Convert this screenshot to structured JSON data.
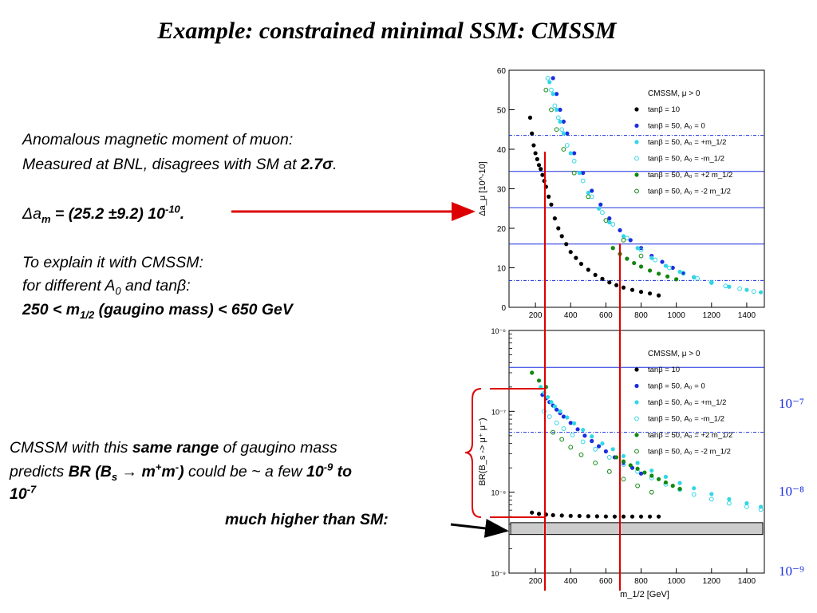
{
  "title": "Example:   constrained minimal SSM: CMSSM",
  "text": {
    "l1": "Anomalous magnetic moment of muon:",
    "l2a": "Measured at BNL, disagrees with SM at ",
    "l2b": "2.7σ",
    "l2c": ".",
    "l3a": "Δa",
    "l3b": "m",
    "l3c": " = (25.2 ±9.2) 10",
    "l3d": "-10",
    "l3e": ".",
    "l4": "To explain it with CMSSM:",
    "l5a": " for different A",
    "l5b": "0",
    "l5c": " and tanβ:",
    "l6a": "250 < m",
    "l6b": "1/2",
    "l6c": " (gaugino mass) < 650 GeV",
    "p1a": "CMSSM with  this ",
    "p1b": "same range",
    "p1c": " of gaugino mass",
    "p2a": "predicts ",
    "p2b": "BR (B",
    "p2c": "s",
    "p2d": " → m",
    "p2e": "+",
    "p2f": "m",
    "p2g": "-",
    "p2h": ")",
    "p2i": " could be ~ a few  ",
    "p2j": "10",
    "p2k": "-9",
    "p2l": " to",
    "p3a": "10",
    "p3b": "-7",
    "p4": "much higher  than SM:",
    "r1": "10⁻⁷",
    "r2": "10⁻⁸",
    "r3": "10⁻⁹"
  },
  "colors": {
    "tan10": "#000000",
    "tan50_0": "#1a2ee0",
    "tan50_plus": "#33d6e6",
    "tan50_minus": "#33d6e6",
    "tan50_plus2": "#118811",
    "tan50_minus2": "#118811",
    "hline": "#1a2ee0",
    "redline": "#dd0000",
    "sm_band": "#cccccc"
  },
  "chart_data": [
    {
      "type": "scatter",
      "ylabel": "Δa_μ [10^-10]",
      "xlim": [
        50,
        1500
      ],
      "ylim": [
        0,
        60
      ],
      "xticks": [
        200,
        400,
        600,
        800,
        1000,
        1200,
        1400
      ],
      "yticks": [
        0,
        10,
        20,
        30,
        40,
        50,
        60
      ],
      "legend_title": "CMSSM, μ > 0",
      "legend_position": "top-right",
      "hlines": [
        {
          "y": 43.5,
          "style": "dash-dot"
        },
        {
          "y": 34.4,
          "style": "solid"
        },
        {
          "y": 25.2,
          "style": "solid"
        },
        {
          "y": 16.0,
          "style": "solid"
        },
        {
          "y": 6.8,
          "style": "dash-dot"
        }
      ],
      "series": [
        {
          "name": "tanβ = 10",
          "marker": "filled",
          "color_key": "tan10",
          "x": [
            170,
            180,
            190,
            200,
            210,
            220,
            230,
            240,
            250,
            260,
            275,
            290,
            310,
            330,
            350,
            375,
            400,
            430,
            460,
            500,
            540,
            580,
            620,
            660,
            700,
            750,
            800,
            850,
            900
          ],
          "y": [
            48,
            44,
            41,
            39,
            37.5,
            36,
            35,
            33.5,
            32,
            30.5,
            28,
            26,
            22.5,
            20,
            18,
            16,
            14,
            12.5,
            11,
            9.5,
            8.2,
            7.2,
            6.3,
            5.6,
            5,
            4.4,
            3.9,
            3.5,
            3
          ]
        },
        {
          "name": "tanβ = 50, A₀ = 0",
          "marker": "filled",
          "color_key": "tan50_0",
          "x": [
            300,
            320,
            340,
            360,
            380,
            420,
            470,
            520,
            570,
            620,
            680,
            740,
            800,
            860,
            920,
            980,
            1040,
            1100
          ],
          "y": [
            58,
            54,
            50,
            47,
            44,
            39,
            34,
            29.5,
            26,
            22.5,
            19.5,
            17,
            15,
            13,
            11.5,
            10,
            8.7,
            7.6
          ]
        },
        {
          "name": "tanβ = 50, A₀ = +m_1/2",
          "marker": "filled",
          "color_key": "tan50_plus",
          "x": [
            280,
            300,
            320,
            340,
            360,
            400,
            450,
            500,
            560,
            620,
            700,
            780,
            860,
            940,
            1020,
            1100,
            1200,
            1300,
            1400,
            1480
          ],
          "y": [
            57,
            54,
            50,
            47,
            44,
            39,
            34,
            29,
            25,
            21.5,
            18,
            15,
            12.5,
            10.5,
            9,
            7.6,
            6.2,
            5.2,
            4.4,
            3.8
          ]
        },
        {
          "name": "tanβ = 50, A₀ = -m_1/2",
          "marker": "open",
          "color_key": "tan50_minus",
          "x": [
            270,
            290,
            310,
            330,
            350,
            380,
            420,
            470,
            520,
            580,
            640,
            720,
            800,
            880,
            960,
            1040,
            1120,
            1200,
            1280,
            1360,
            1440
          ],
          "y": [
            58,
            55,
            51,
            48,
            45,
            41,
            37,
            32,
            28,
            24,
            21,
            17.5,
            14.5,
            12,
            10,
            8.6,
            7.3,
            6.3,
            5.4,
            4.7,
            4
          ]
        },
        {
          "name": "tanβ = 50, A₀ = +2 m_1/2",
          "marker": "filled",
          "color_key": "tan50_plus2",
          "x": [
            640,
            680,
            720,
            760,
            800,
            850,
            900,
            950,
            1000
          ],
          "y": [
            15,
            13.5,
            12.3,
            11.2,
            10.3,
            9.3,
            8.5,
            7.8,
            7.1
          ]
        },
        {
          "name": "tanβ = 50, A₀ = -2 m_1/2",
          "marker": "open",
          "color_key": "tan50_minus2",
          "x": [
            260,
            290,
            320,
            360,
            420,
            500,
            600,
            700,
            800
          ],
          "y": [
            55,
            50,
            45,
            40,
            34,
            28,
            22,
            17,
            13
          ]
        }
      ]
    },
    {
      "type": "scatter",
      "xlabel": "m_1/2 [GeV]",
      "ylabel": "BR(B_s -> μ⁺ μ⁻)",
      "xlim": [
        50,
        1500
      ],
      "ylim": [
        1e-09,
        1e-06
      ],
      "yscale": "log",
      "xticks": [
        200,
        400,
        600,
        800,
        1000,
        1200,
        1400
      ],
      "ytick_labels": [
        "10⁻⁹",
        "10⁻⁸",
        "10⁻⁷",
        "10⁻⁶"
      ],
      "legend_title": "CMSSM, μ > 0",
      "legend_position": "top-right",
      "sm_band": [
        3e-09,
        4.2e-09
      ],
      "hlines": [
        {
          "y": 3.5e-07,
          "style": "solid"
        },
        {
          "y": 5.5e-08,
          "style": "dash-dot"
        }
      ],
      "series": [
        {
          "name": "tanβ = 10",
          "marker": "filled",
          "color_key": "tan10",
          "x": [
            180,
            220,
            260,
            300,
            350,
            400,
            450,
            500,
            550,
            600,
            650,
            700,
            750,
            800,
            850,
            900
          ],
          "y": [
            5.6e-09,
            5.4e-09,
            5.3e-09,
            5.2e-09,
            5.15e-09,
            5.1e-09,
            5.08e-09,
            5.05e-09,
            5.03e-09,
            5.01e-09,
            5e-09,
            5e-09,
            5e-09,
            5e-09,
            5e-09,
            5e-09
          ]
        },
        {
          "name": "tanβ = 50, A₀ = 0",
          "marker": "filled",
          "color_key": "tan50_0",
          "x": [
            240,
            260,
            280,
            300,
            320,
            340,
            360,
            400,
            440,
            480,
            520,
            560,
            600,
            650,
            700,
            750,
            800
          ],
          "y": [
            1.6e-07,
            1.45e-07,
            1.3e-07,
            1.18e-07,
            1.05e-07,
            9.5e-08,
            8.6e-08,
            7.2e-08,
            6e-08,
            5e-08,
            4.3e-08,
            3.7e-08,
            3.2e-08,
            2.7e-08,
            2.3e-08,
            2e-08,
            1.7e-08
          ]
        },
        {
          "name": "tanβ = 50, A₀ = +m_1/2",
          "marker": "filled",
          "color_key": "tan50_plus",
          "x": [
            230,
            250,
            270,
            290,
            310,
            340,
            380,
            420,
            470,
            520,
            580,
            640,
            700,
            780,
            860,
            940,
            1020,
            1100,
            1200,
            1300,
            1400,
            1480
          ],
          "y": [
            2e-07,
            1.7e-07,
            1.5e-07,
            1.3e-07,
            1.15e-07,
            1e-07,
            8.4e-08,
            7.1e-08,
            5.9e-08,
            4.9e-08,
            4e-08,
            3.4e-08,
            2.8e-08,
            2.3e-08,
            1.85e-08,
            1.55e-08,
            1.3e-08,
            1.12e-08,
            9.5e-09,
            8.2e-09,
            7.3e-09,
            6.6e-09
          ]
        },
        {
          "name": "tanβ = 50, A₀ = -m_1/2",
          "marker": "open",
          "color_key": "tan50_minus",
          "x": [
            250,
            280,
            320,
            360,
            410,
            470,
            540,
            620,
            700,
            780,
            860,
            940,
            1020,
            1100,
            1200,
            1300,
            1400,
            1480
          ],
          "y": [
            1e-07,
            8.6e-08,
            7.2e-08,
            6.1e-08,
            5.1e-08,
            4.2e-08,
            3.4e-08,
            2.7e-08,
            2.2e-08,
            1.8e-08,
            1.5e-08,
            1.25e-08,
            1.08e-08,
            9.4e-09,
            8.2e-09,
            7.3e-09,
            6.6e-09,
            6.1e-09
          ]
        },
        {
          "name": "tanβ = 50, A₀ = +2 m_1/2",
          "marker": "filled",
          "color_key": "tan50_plus2",
          "x": [
            180,
            220,
            260,
            660,
            700,
            740,
            780,
            820,
            860,
            900,
            940,
            980,
            1020
          ],
          "y": [
            3e-07,
            2.4e-07,
            2e-07,
            2.7e-08,
            2.4e-08,
            2.15e-08,
            1.95e-08,
            1.75e-08,
            1.6e-08,
            1.45e-08,
            1.32e-08,
            1.2e-08,
            1.1e-08
          ]
        },
        {
          "name": "tanβ = 50, A₀ = -2 m_1/2",
          "marker": "open",
          "color_key": "tan50_minus2",
          "x": [
            300,
            350,
            400,
            460,
            540,
            620,
            700,
            780,
            860
          ],
          "y": [
            5.5e-08,
            4.5e-08,
            3.6e-08,
            2.9e-08,
            2.3e-08,
            1.8e-08,
            1.45e-08,
            1.2e-08,
            1e-08
          ]
        }
      ]
    }
  ]
}
